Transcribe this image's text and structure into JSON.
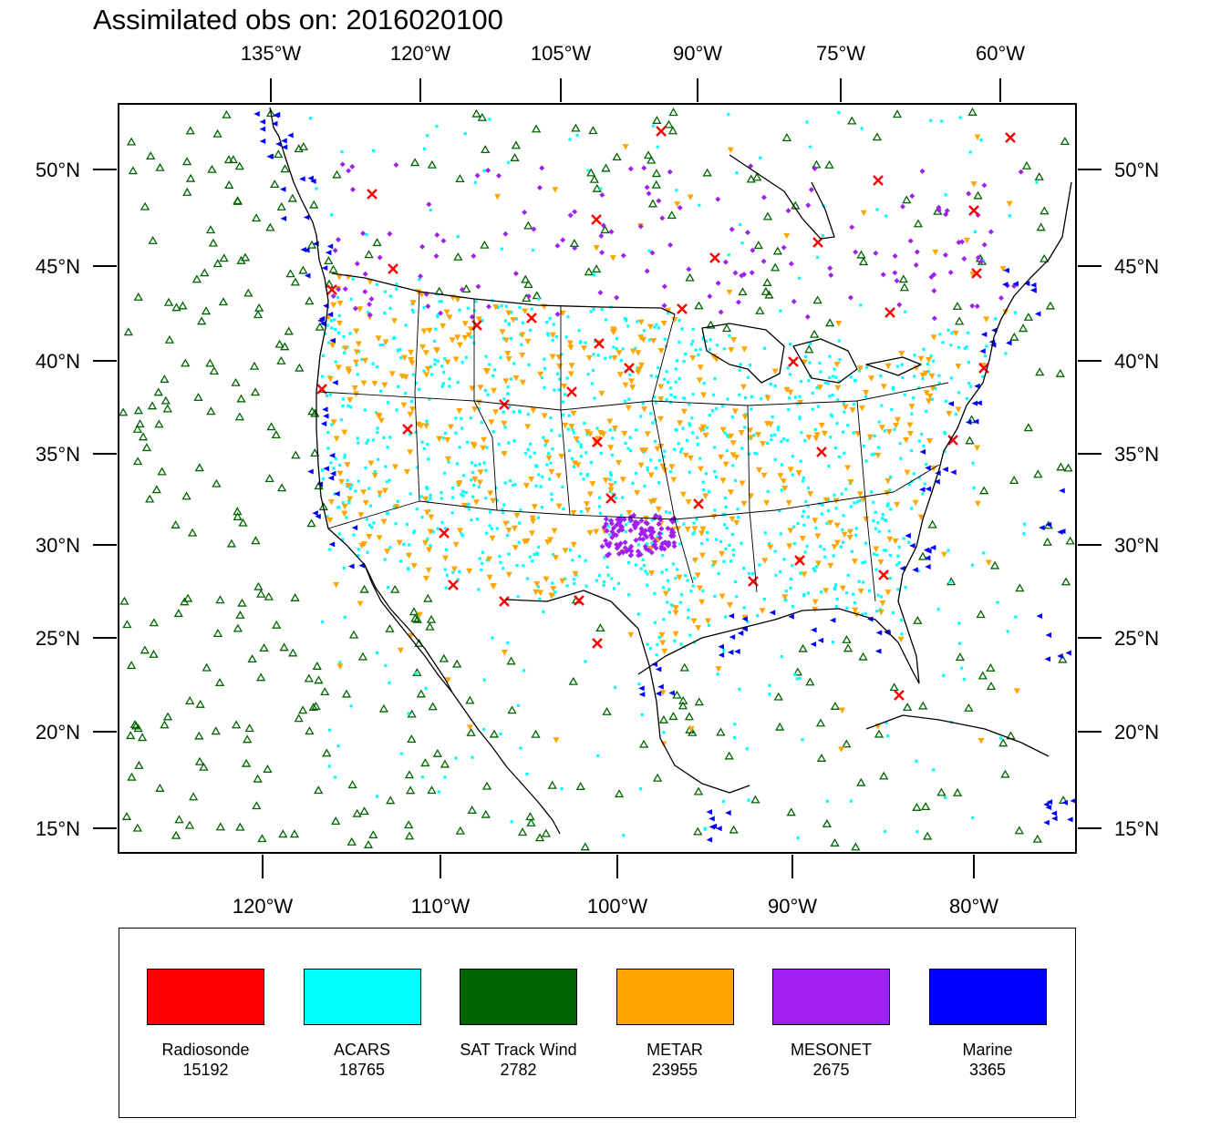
{
  "title": "Assimilated obs on: 2016020100",
  "map": {
    "projection": "Lambert conformal conic",
    "lon_range": [
      -127.5,
      -73.5
    ],
    "lat_range": [
      13.8,
      53.5
    ],
    "grid": false,
    "top_ticks": [
      "135°W",
      "120°W",
      "105°W",
      "90°W",
      "75°W",
      "60°W"
    ],
    "bottom_ticks": [
      "120°W",
      "110°W",
      "100°W",
      "90°W",
      "80°W"
    ],
    "left_ticks": [
      "50°N",
      "45°N",
      "40°N",
      "35°N",
      "30°N",
      "25°N",
      "20°N",
      "15°N"
    ],
    "right_ticks": [
      "50°N",
      "45°N",
      "40°N",
      "35°N",
      "30°N",
      "25°N",
      "20°N",
      "15°N"
    ],
    "coastline_color": "#000000",
    "marker_shapes": {
      "Radiosonde": "x-cross",
      "ACARS": "small-square",
      "SAT Track Wind": "open-triangle-up",
      "METAR": "filled-triangle-down",
      "MESONET": "small-diamond",
      "Marine": "filled-triangle-left"
    }
  },
  "legend": {
    "placement": "below-map",
    "items": [
      {
        "label": "Radiosonde",
        "count": "15192",
        "color": "#ff0000"
      },
      {
        "label": "ACARS",
        "count": "18765",
        "color": "#00ffff"
      },
      {
        "label": "SAT Track Wind",
        "count": "2782",
        "color": "#006400"
      },
      {
        "label": "METAR",
        "count": "23955",
        "color": "#ffa500"
      },
      {
        "label": "MESONET",
        "count": "2675",
        "color": "#a020f0"
      },
      {
        "label": "Marine",
        "count": "3365",
        "color": "#0000ff"
      }
    ]
  }
}
